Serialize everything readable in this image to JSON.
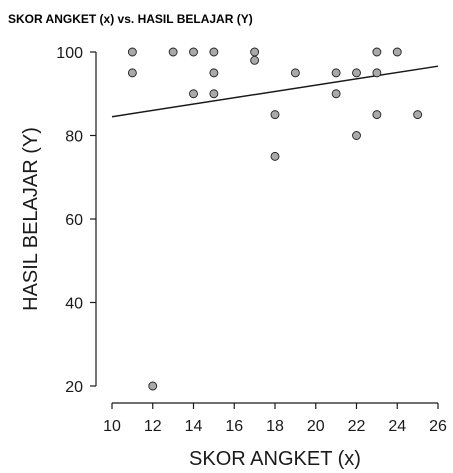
{
  "chart_data": {
    "type": "scatter",
    "title": "SKOR ANGKET (x) vs. HASIL BELAJAR (Y)",
    "xlabel": "SKOR ANGKET (x)",
    "ylabel": "HASIL BELAJAR (Y)",
    "xlim": [
      10,
      26
    ],
    "ylim": [
      20,
      100
    ],
    "xticks": [
      "10",
      "12",
      "14",
      "16",
      "18",
      "20",
      "22",
      "24",
      "26"
    ],
    "yticks": [
      "20",
      "40",
      "60",
      "80",
      "100"
    ],
    "grid": false,
    "points": [
      {
        "x": 11,
        "y": 100
      },
      {
        "x": 11,
        "y": 95
      },
      {
        "x": 12,
        "y": 20
      },
      {
        "x": 13,
        "y": 100
      },
      {
        "x": 14,
        "y": 100
      },
      {
        "x": 14,
        "y": 90
      },
      {
        "x": 15,
        "y": 100
      },
      {
        "x": 15,
        "y": 95
      },
      {
        "x": 15,
        "y": 90
      },
      {
        "x": 17,
        "y": 100
      },
      {
        "x": 17,
        "y": 98
      },
      {
        "x": 18,
        "y": 85
      },
      {
        "x": 18,
        "y": 75
      },
      {
        "x": 19,
        "y": 95
      },
      {
        "x": 21,
        "y": 95
      },
      {
        "x": 21,
        "y": 90
      },
      {
        "x": 22,
        "y": 95
      },
      {
        "x": 22,
        "y": 80
      },
      {
        "x": 23,
        "y": 100
      },
      {
        "x": 23,
        "y": 95
      },
      {
        "x": 23,
        "y": 85
      },
      {
        "x": 24,
        "y": 100
      },
      {
        "x": 25,
        "y": 85
      }
    ],
    "trend_line": {
      "x": [
        10,
        26
      ],
      "y": [
        84.5,
        96.6
      ]
    },
    "colors": {
      "point_fill": "#a9a9a9",
      "point_stroke": "#222222",
      "line": "#1a1a1a",
      "axis": "#1a1a1a"
    }
  }
}
